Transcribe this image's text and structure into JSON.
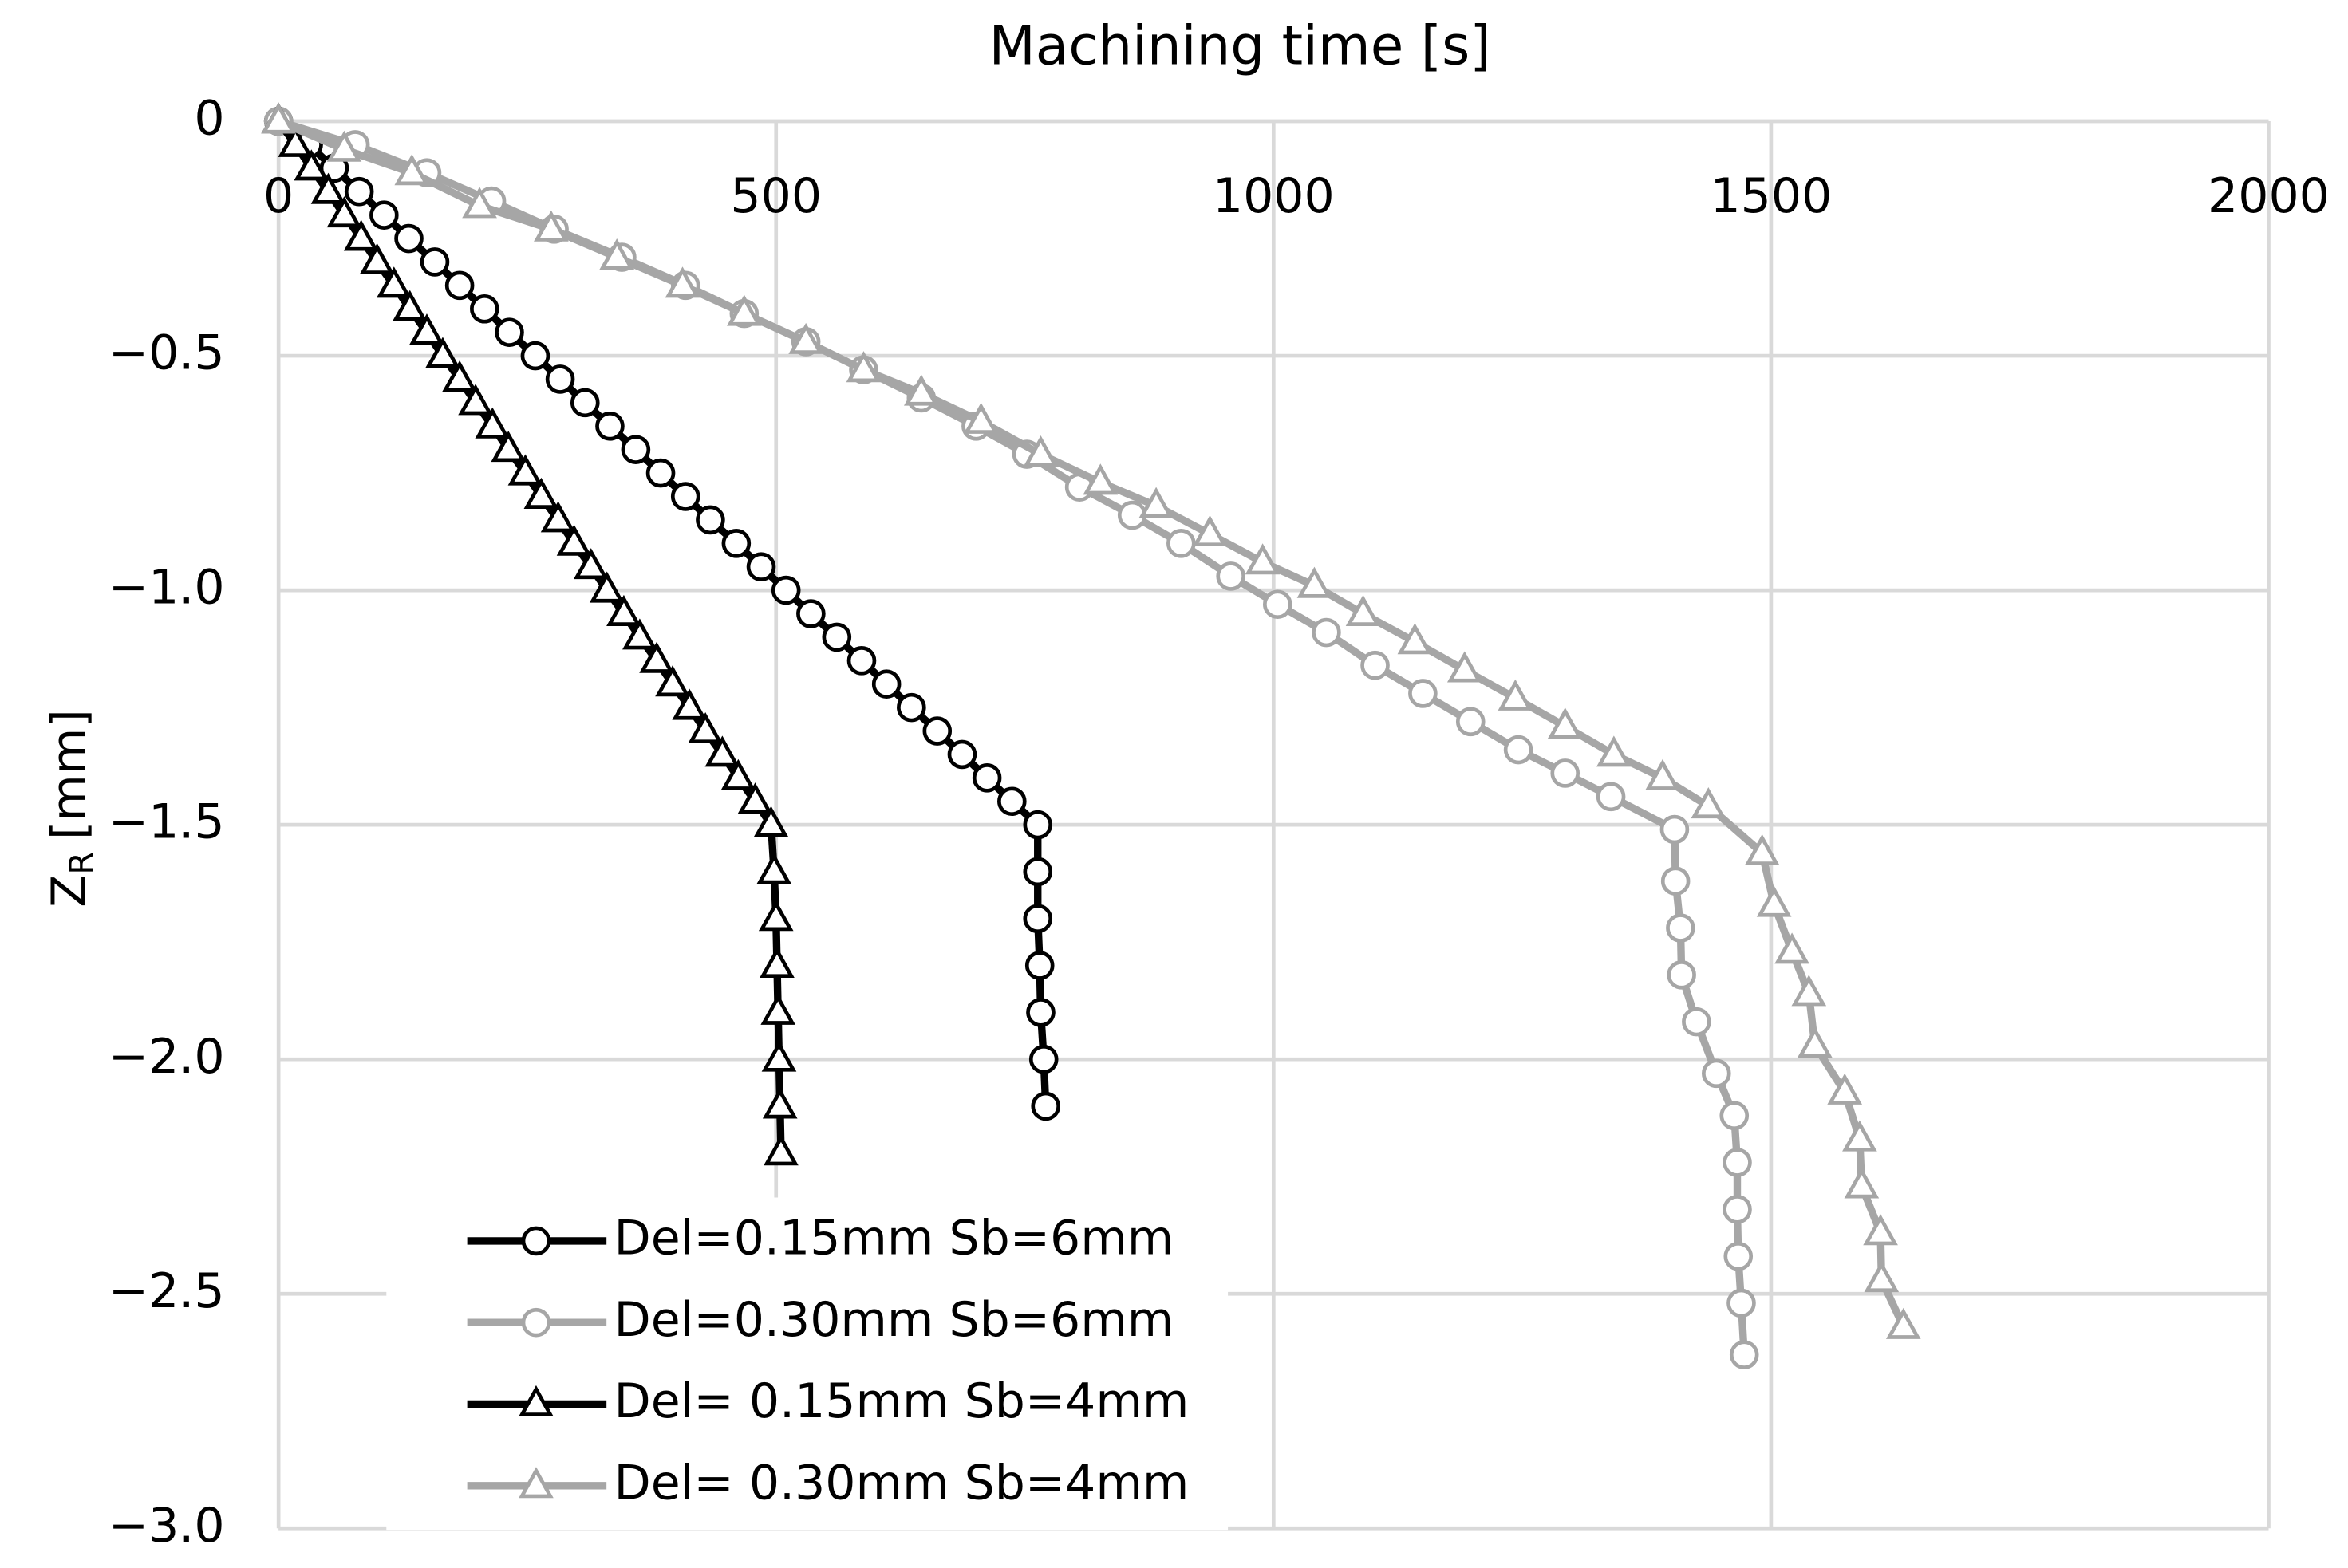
{
  "chart_data": {
    "type": "line",
    "title": "Machining time [s]",
    "ylabel": {
      "text": "Z",
      "subscript": "R",
      "unit": "[mm]"
    },
    "xlim": [
      0,
      2000
    ],
    "xticks": [
      0,
      500,
      1000,
      1500,
      2000
    ],
    "ylim": [
      -3.0,
      0
    ],
    "yticks": [
      {
        "value": -3.0,
        "label": "−3.0"
      },
      {
        "value": -2.5,
        "label": "−2.5"
      },
      {
        "value": -2.0,
        "label": "−2.0"
      },
      {
        "value": -1.5,
        "label": "−1.5"
      },
      {
        "value": -1.0,
        "label": "−1.0"
      },
      {
        "value": -0.5,
        "label": "−0.5"
      },
      0
    ],
    "grid": true,
    "legend": "lower left",
    "series": [
      {
        "name": "Del=0.15mm Sb=6mm",
        "color": "#000000",
        "marker": "circle",
        "x": [
          0,
          30,
          56,
          81,
          106,
          131,
          157,
          182,
          207,
          232,
          258,
          283,
          308,
          333,
          359,
          384,
          409,
          434,
          460,
          485,
          510,
          535,
          561,
          586,
          611,
          636,
          662,
          687,
          712,
          737,
          763,
          763,
          763,
          765,
          766,
          769,
          771
        ],
        "values": [
          0,
          -0.05,
          -0.1,
          -0.15,
          -0.2,
          -0.25,
          -0.3,
          -0.35,
          -0.4,
          -0.45,
          -0.5,
          -0.55,
          -0.6,
          -0.65,
          -0.7,
          -0.75,
          -0.8,
          -0.85,
          -0.9,
          -0.95,
          -1.0,
          -1.05,
          -1.1,
          -1.15,
          -1.2,
          -1.25,
          -1.3,
          -1.35,
          -1.4,
          -1.45,
          -1.5,
          -1.6,
          -1.7,
          -1.8,
          -1.9,
          -2.0,
          -2.1
        ]
      },
      {
        "name": "Del=0.30mm Sb=6mm",
        "color": "#a6a6a6",
        "marker": "circle",
        "x": [
          0,
          77,
          149,
          214,
          277,
          345,
          409,
          468,
          530,
          588,
          646,
          701,
          752,
          805,
          858,
          907,
          957,
          1004,
          1053,
          1102,
          1150,
          1198,
          1246,
          1293,
          1339,
          1403,
          1404,
          1409,
          1410,
          1425,
          1445,
          1463,
          1466,
          1466,
          1467,
          1470,
          1473
        ],
        "values": [
          0,
          -0.05,
          -0.11,
          -0.17,
          -0.23,
          -0.29,
          -0.35,
          -0.41,
          -0.47,
          -0.53,
          -0.59,
          -0.65,
          -0.71,
          -0.78,
          -0.84,
          -0.9,
          -0.97,
          -1.03,
          -1.09,
          -1.16,
          -1.22,
          -1.28,
          -1.34,
          -1.39,
          -1.44,
          -1.51,
          -1.62,
          -1.72,
          -1.82,
          -1.92,
          -2.03,
          -2.12,
          -2.22,
          -2.32,
          -2.42,
          -2.52,
          -2.63
        ]
      },
      {
        "name": "Del= 0.15mm Sb=4mm",
        "color": "#000000",
        "marker": "triangle",
        "x": [
          0,
          17,
          33,
          50,
          66,
          83,
          99,
          116,
          132,
          149,
          165,
          182,
          198,
          215,
          231,
          248,
          264,
          281,
          297,
          314,
          330,
          347,
          363,
          380,
          396,
          413,
          429,
          446,
          462,
          479,
          495,
          498,
          500,
          501,
          502,
          503,
          504,
          505
        ],
        "values": [
          0,
          -0.05,
          -0.1,
          -0.15,
          -0.2,
          -0.25,
          -0.3,
          -0.35,
          -0.4,
          -0.45,
          -0.5,
          -0.55,
          -0.6,
          -0.65,
          -0.7,
          -0.75,
          -0.8,
          -0.85,
          -0.9,
          -0.95,
          -1.0,
          -1.05,
          -1.1,
          -1.15,
          -1.2,
          -1.25,
          -1.3,
          -1.35,
          -1.4,
          -1.45,
          -1.5,
          -1.6,
          -1.7,
          -1.8,
          -1.9,
          -2.0,
          -2.1,
          -2.2
        ]
      },
      {
        "name": "Del= 0.30mm Sb=4mm",
        "color": "#a6a6a6",
        "marker": "triangle",
        "x": [
          0,
          66,
          134,
          202,
          274,
          340,
          406,
          468,
          530,
          588,
          646,
          706,
          766,
          826,
          882,
          936,
          989,
          1041,
          1090,
          1142,
          1192,
          1243,
          1293,
          1342,
          1391,
          1437,
          1491,
          1503,
          1521,
          1538,
          1544,
          1574,
          1589,
          1591,
          1610,
          1611,
          1633
        ],
        "values": [
          0,
          -0.06,
          -0.11,
          -0.18,
          -0.23,
          -0.29,
          -0.35,
          -0.41,
          -0.47,
          -0.53,
          -0.58,
          -0.64,
          -0.71,
          -0.77,
          -0.82,
          -0.88,
          -0.94,
          -0.99,
          -1.05,
          -1.11,
          -1.17,
          -1.23,
          -1.29,
          -1.35,
          -1.4,
          -1.46,
          -1.56,
          -1.67,
          -1.77,
          -1.86,
          -1.97,
          -2.07,
          -2.17,
          -2.27,
          -2.37,
          -2.47,
          -2.57
        ]
      }
    ]
  }
}
